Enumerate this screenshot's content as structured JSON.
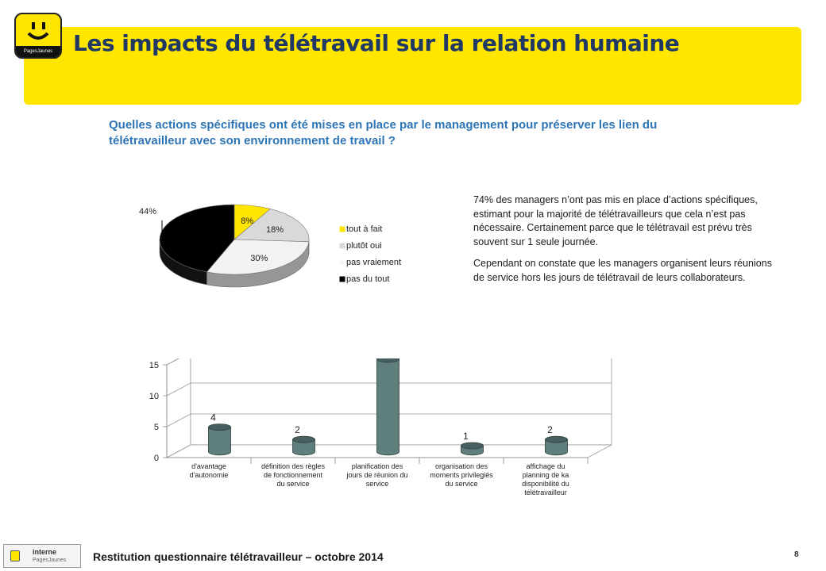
{
  "header": {
    "title": "Les impacts du télétravail sur la relation humaine",
    "logo_text": "PagesJaunes"
  },
  "question": "Quelles actions spécifiques ont été mises en place par le management pour préserver les lien du télétravailleur avec son environnement de travail ?",
  "description": {
    "p1": "74% des managers n’ont pas mis en place d’actions spécifiques, estimant pour la majorité de télétravailleurs que cela n’est pas nécessaire. Certainement parce que le télétravail est prévu très souvent sur 1 seule journée.",
    "p2": "Cependant on constate que les managers organisent leurs réunions de service hors les jours de télétravail de leurs collaborateurs."
  },
  "footer": {
    "badge_label": "interne",
    "badge_sub": "PagesJaunes",
    "text": "Restitution questionnaire télétravailleur – octobre 2014",
    "page": "8"
  },
  "colors": {
    "banner": "#ffe600",
    "title": "#1f3864",
    "question": "#2e75b6",
    "bar": "#5f7f7d"
  },
  "chart_data": [
    {
      "type": "pie",
      "slices": [
        {
          "label": "tout à fait",
          "value": 8,
          "value_label": "8%",
          "color": "#ffe600"
        },
        {
          "label": "plutôt oui",
          "value": 18,
          "value_label": "18%",
          "color": "#d9d9d9"
        },
        {
          "label": "pas vraiement",
          "value": 30,
          "value_label": "30%",
          "color": "#f2f2f2"
        },
        {
          "label": "pas du tout",
          "value": 44,
          "value_label": "44%",
          "color": "#000000"
        }
      ],
      "legend_position": "right"
    },
    {
      "type": "bar",
      "categories": [
        [
          "d'avantage",
          "d'autonomie"
        ],
        [
          "définition des règles",
          "de fonctionnement",
          "du service"
        ],
        [
          "planification des",
          "jours de réunion du",
          "service"
        ],
        [
          "organisation des",
          "moments privilegiés",
          "du service"
        ],
        [
          "affichage du",
          "planning de  ka",
          "disponibilité du",
          "télétravailleur"
        ]
      ],
      "values": [
        4,
        2,
        15,
        1,
        2
      ],
      "yticks": [
        0,
        5,
        10,
        15
      ],
      "ylim": [
        0,
        15
      ],
      "color": "#5f7f7d"
    }
  ]
}
